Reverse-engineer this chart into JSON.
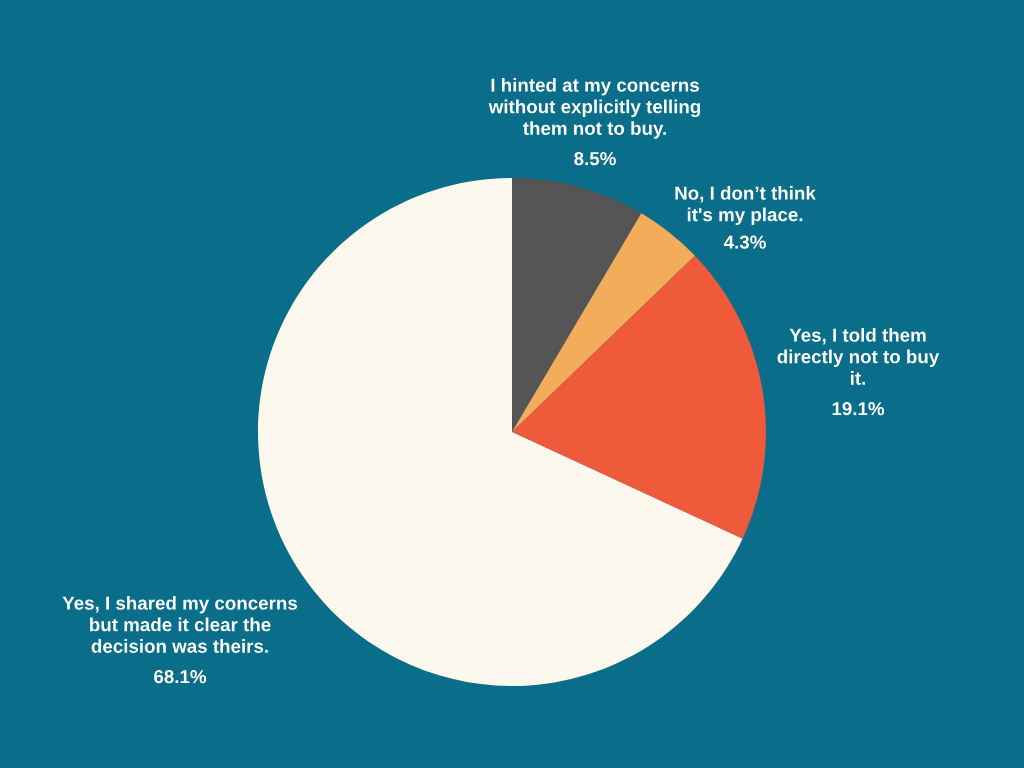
{
  "chart_data": {
    "type": "pie",
    "categories": [
      "I hinted at my concerns\nwithout explicitly telling\nthem not to buy.",
      "No, I don’t think\nit's my place.",
      "Yes, I told them\ndirectly not to buy\nit.",
      "Yes, I shared my concerns\nbut made it clear the\ndecision was theirs."
    ],
    "values": [
      8.5,
      4.3,
      19.1,
      68.1
    ],
    "colors": [
      "#555555",
      "#f3ac5a",
      "#ee5a3a",
      "#fdf8ee"
    ],
    "value_labels": [
      "8.5%",
      "4.3%",
      "19.1%",
      "68.1%"
    ]
  }
}
